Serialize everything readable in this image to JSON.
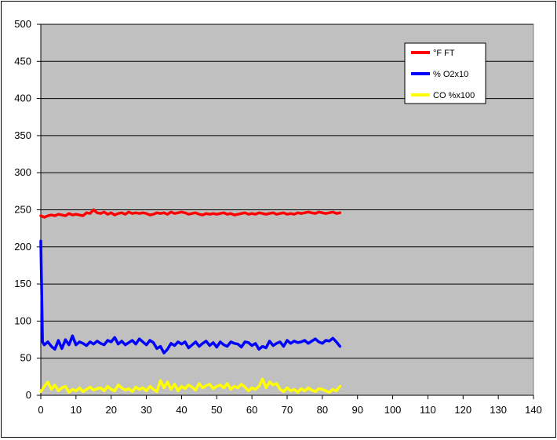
{
  "chart_data": {
    "type": "line",
    "title": "",
    "xlabel": "",
    "ylabel": "",
    "xlim": [
      0,
      140
    ],
    "ylim": [
      0,
      500
    ],
    "x_ticks": [
      0,
      10,
      20,
      30,
      40,
      50,
      60,
      70,
      80,
      90,
      100,
      110,
      120,
      130,
      140
    ],
    "y_ticks": [
      0,
      50,
      100,
      150,
      200,
      250,
      300,
      350,
      400,
      450,
      500
    ],
    "grid": "horizontal",
    "plot_background": "#c0c0c0",
    "legend_position": "top-right",
    "series": [
      {
        "name": "°F FT",
        "color": "#ff0000",
        "x": [
          0,
          1,
          2,
          3,
          4,
          5,
          6,
          7,
          8,
          9,
          10,
          11,
          12,
          13,
          14,
          15,
          16,
          17,
          18,
          19,
          20,
          21,
          22,
          23,
          24,
          25,
          26,
          27,
          28,
          29,
          30,
          31,
          32,
          33,
          34,
          35,
          36,
          37,
          38,
          39,
          40,
          41,
          42,
          43,
          44,
          45,
          46,
          47,
          48,
          49,
          50,
          51,
          52,
          53,
          54,
          55,
          56,
          57,
          58,
          59,
          60,
          61,
          62,
          63,
          64,
          65,
          66,
          67,
          68,
          69,
          70,
          71,
          72,
          73,
          74,
          75,
          76,
          77,
          78,
          79,
          80,
          81,
          82,
          83,
          84,
          85
        ],
        "y": [
          242,
          240,
          242,
          243,
          242,
          244,
          243,
          242,
          245,
          243,
          244,
          243,
          242,
          246,
          245,
          250,
          246,
          245,
          247,
          244,
          246,
          243,
          245,
          246,
          244,
          247,
          245,
          246,
          245,
          246,
          245,
          243,
          244,
          246,
          245,
          246,
          244,
          247,
          245,
          246,
          247,
          246,
          244,
          245,
          246,
          244,
          243,
          245,
          244,
          245,
          244,
          245,
          246,
          244,
          245,
          243,
          244,
          245,
          246,
          244,
          245,
          244,
          246,
          245,
          244,
          245,
          246,
          244,
          245,
          246,
          244,
          245,
          244,
          246,
          245,
          246,
          247,
          246,
          245,
          247,
          246,
          245,
          246,
          247,
          245,
          246
        ]
      },
      {
        "name": "% O2x10",
        "color": "#0000ff",
        "x": [
          0,
          0.5,
          1,
          2,
          3,
          4,
          5,
          6,
          7,
          8,
          9,
          10,
          11,
          12,
          13,
          14,
          15,
          16,
          17,
          18,
          19,
          20,
          21,
          22,
          23,
          24,
          25,
          26,
          27,
          28,
          29,
          30,
          31,
          32,
          33,
          34,
          35,
          36,
          37,
          38,
          39,
          40,
          41,
          42,
          43,
          44,
          45,
          46,
          47,
          48,
          49,
          50,
          51,
          52,
          53,
          54,
          55,
          56,
          57,
          58,
          59,
          60,
          61,
          62,
          63,
          64,
          65,
          66,
          67,
          68,
          69,
          70,
          71,
          72,
          73,
          74,
          75,
          76,
          77,
          78,
          79,
          80,
          81,
          82,
          83,
          84,
          85
        ],
        "y": [
          208,
          72,
          68,
          72,
          66,
          62,
          74,
          63,
          75,
          68,
          80,
          68,
          72,
          70,
          67,
          72,
          69,
          73,
          70,
          68,
          74,
          72,
          78,
          69,
          73,
          68,
          71,
          74,
          69,
          76,
          72,
          68,
          74,
          71,
          63,
          66,
          57,
          62,
          70,
          67,
          72,
          69,
          72,
          64,
          68,
          72,
          66,
          70,
          73,
          67,
          71,
          65,
          72,
          68,
          66,
          72,
          70,
          69,
          65,
          72,
          71,
          67,
          70,
          62,
          66,
          64,
          73,
          67,
          70,
          72,
          66,
          74,
          70,
          73,
          71,
          72,
          74,
          70,
          73,
          76,
          72,
          70,
          74,
          73,
          77,
          72,
          66
        ]
      },
      {
        "name": "CO %x100",
        "color": "#ffff00",
        "x": [
          0,
          1,
          2,
          3,
          4,
          5,
          6,
          7,
          8,
          9,
          10,
          11,
          12,
          13,
          14,
          15,
          16,
          17,
          18,
          19,
          20,
          21,
          22,
          23,
          24,
          25,
          26,
          27,
          28,
          29,
          30,
          31,
          32,
          33,
          34,
          35,
          36,
          37,
          38,
          39,
          40,
          41,
          42,
          43,
          44,
          45,
          46,
          47,
          48,
          49,
          50,
          51,
          52,
          53,
          54,
          55,
          56,
          57,
          58,
          59,
          60,
          61,
          62,
          63,
          64,
          65,
          66,
          67,
          68,
          69,
          70,
          71,
          72,
          73,
          74,
          75,
          76,
          77,
          78,
          79,
          80,
          81,
          82,
          83,
          84,
          85
        ],
        "y": [
          5,
          12,
          18,
          8,
          14,
          6,
          10,
          12,
          4,
          8,
          6,
          10,
          5,
          8,
          11,
          7,
          9,
          10,
          6,
          12,
          8,
          6,
          14,
          10,
          7,
          9,
          5,
          11,
          8,
          10,
          6,
          12,
          8,
          5,
          20,
          10,
          18,
          8,
          15,
          6,
          12,
          9,
          14,
          11,
          7,
          16,
          10,
          13,
          15,
          9,
          12,
          14,
          10,
          16,
          8,
          12,
          10,
          15,
          11,
          6,
          10,
          8,
          12,
          22,
          10,
          18,
          14,
          16,
          8,
          5,
          10,
          6,
          8,
          4,
          9,
          6,
          10,
          7,
          5,
          9,
          8,
          6,
          4,
          8,
          6,
          12
        ]
      }
    ]
  }
}
